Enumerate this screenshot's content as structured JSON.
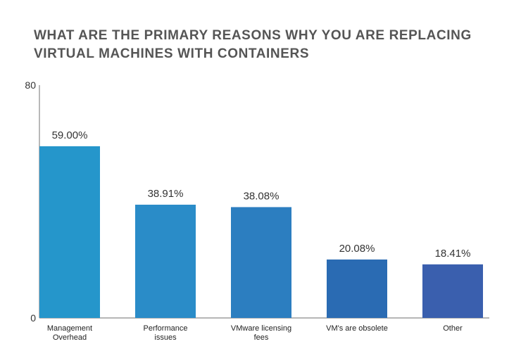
{
  "title_lines": [
    "WHAT ARE THE PRIMARY REASONS WHY YOU ARE REPLACING",
    "VIRTUAL MACHINES WITH CONTAINERS"
  ],
  "chart_data": {
    "type": "bar",
    "title": "WHAT ARE THE PRIMARY REASONS WHY YOU ARE REPLACING VIRTUAL MACHINES WITH CONTAINERS",
    "xlabel": "",
    "ylabel": "",
    "ylim": [
      0,
      80
    ],
    "y_ticks": [
      "0",
      "80"
    ],
    "grid": false,
    "categories": [
      [
        "Management",
        "Overhead"
      ],
      [
        "Performance",
        "issues"
      ],
      [
        "VMware licensing",
        "fees"
      ],
      [
        "VM's are obsolete"
      ],
      [
        "Other"
      ]
    ],
    "values": [
      59.0,
      38.91,
      38.08,
      20.08,
      18.41
    ],
    "data_labels": [
      "59.00%",
      "38.91%",
      "38.08%",
      "20.08%",
      "18.41%"
    ],
    "colors": [
      "#2596cb",
      "#2a8cc8",
      "#2c7ec0",
      "#2a6bb3",
      "#3a5fae"
    ]
  }
}
